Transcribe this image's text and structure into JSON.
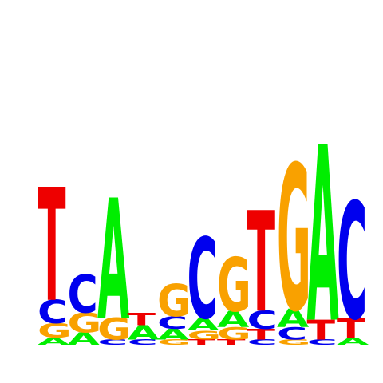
{
  "chart_data": {
    "type": "sequence-logo",
    "title": "",
    "xlabel": "",
    "ylabel": "",
    "axes_visible": false,
    "grid": false,
    "legend": "none",
    "ylim": [
      0,
      2
    ],
    "colors": {
      "A": "#00ee00",
      "C": "#0000ee",
      "G": "#f9a100",
      "T": "#ee0000"
    },
    "positions": [
      {
        "position": 1,
        "letters": [
          {
            "base": "A",
            "height": 0.04
          },
          {
            "base": "G",
            "height": 0.08
          },
          {
            "base": "C",
            "height": 0.13
          },
          {
            "base": "T",
            "height": 0.63
          }
        ]
      },
      {
        "position": 2,
        "letters": [
          {
            "base": "A",
            "height": 0.07
          },
          {
            "base": "G",
            "height": 0.11
          },
          {
            "base": "C",
            "height": 0.21
          }
        ]
      },
      {
        "position": 3,
        "letters": [
          {
            "base": "C",
            "height": 0.03
          },
          {
            "base": "G",
            "height": 0.12
          },
          {
            "base": "A",
            "height": 0.67
          }
        ]
      },
      {
        "position": 4,
        "letters": [
          {
            "base": "C",
            "height": 0.03
          },
          {
            "base": "A",
            "height": 0.08
          },
          {
            "base": "T",
            "height": 0.07
          }
        ]
      },
      {
        "position": 5,
        "letters": [
          {
            "base": "G",
            "height": 0.03
          },
          {
            "base": "A",
            "height": 0.06
          },
          {
            "base": "C",
            "height": 0.07
          },
          {
            "base": "G",
            "height": 0.18
          }
        ]
      },
      {
        "position": 6,
        "letters": [
          {
            "base": "T",
            "height": 0.03
          },
          {
            "base": "G",
            "height": 0.05
          },
          {
            "base": "A",
            "height": 0.07
          },
          {
            "base": "C",
            "height": 0.45
          }
        ]
      },
      {
        "position": 7,
        "letters": [
          {
            "base": "T",
            "height": 0.03
          },
          {
            "base": "G",
            "height": 0.07
          },
          {
            "base": "A",
            "height": 0.09
          },
          {
            "base": "G",
            "height": 0.3
          }
        ]
      },
      {
        "position": 8,
        "letters": [
          {
            "base": "C",
            "height": 0.03
          },
          {
            "base": "T",
            "height": 0.06
          },
          {
            "base": "C",
            "height": 0.1
          },
          {
            "base": "T",
            "height": 0.56
          }
        ]
      },
      {
        "position": 9,
        "letters": [
          {
            "base": "G",
            "height": 0.03
          },
          {
            "base": "C",
            "height": 0.07
          },
          {
            "base": "A",
            "height": 0.1
          },
          {
            "base": "G",
            "height": 0.81
          }
        ]
      },
      {
        "position": 10,
        "letters": [
          {
            "base": "C",
            "height": 0.03
          },
          {
            "base": "T",
            "height": 0.11
          },
          {
            "base": "A",
            "height": 0.98
          }
        ]
      },
      {
        "position": 11,
        "letters": [
          {
            "base": "A",
            "height": 0.04
          },
          {
            "base": "T",
            "height": 0.11
          },
          {
            "base": "C",
            "height": 0.65
          }
        ]
      }
    ]
  }
}
